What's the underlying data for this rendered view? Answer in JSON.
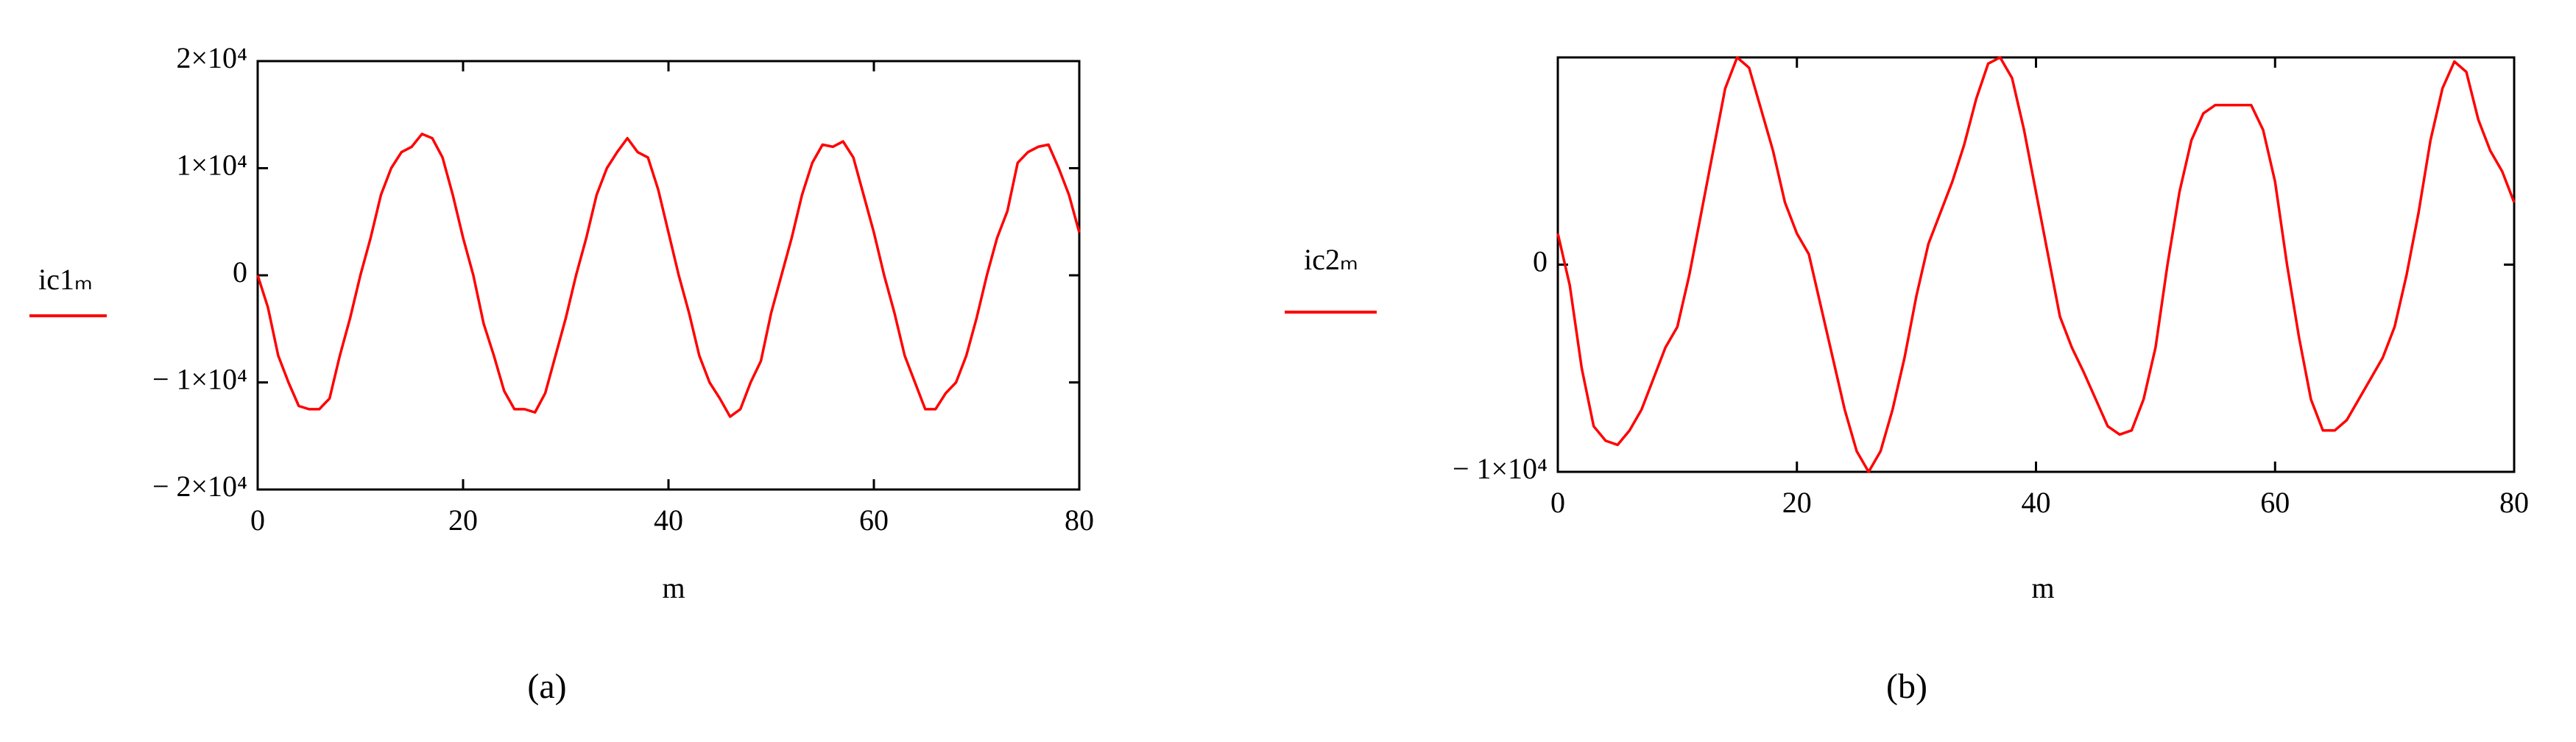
{
  "chart_data": [
    {
      "type": "line",
      "ylabel": "ic1ₘ",
      "xlabel": "m",
      "caption": "(a)",
      "color": "#ff0000",
      "x": [
        0,
        1,
        2,
        3,
        4,
        5,
        6,
        7,
        8,
        9,
        10,
        11,
        12,
        13,
        14,
        15,
        16,
        17,
        18,
        19,
        20,
        21,
        22,
        23,
        24,
        25,
        26,
        27,
        28,
        29,
        30,
        31,
        32,
        33,
        34,
        35,
        36,
        37,
        38,
        39,
        40,
        41,
        42,
        43,
        44,
        45,
        46,
        47,
        48,
        49,
        50,
        51,
        52,
        53,
        54,
        55,
        56,
        57,
        58,
        59,
        60,
        61,
        62,
        63,
        64,
        65,
        66,
        67,
        68,
        69,
        70,
        71,
        72,
        73,
        74,
        75,
        76,
        77,
        78,
        79,
        80
      ],
      "values": [
        0,
        -3000,
        -7500,
        -10000,
        -12200,
        -12500,
        -12500,
        -11500,
        -7500,
        -4000,
        0,
        3500,
        7500,
        10000,
        11500,
        12000,
        13200,
        12800,
        11000,
        7500,
        3500,
        0,
        -4500,
        -7500,
        -10800,
        -12500,
        -12500,
        -12800,
        -11000,
        -7500,
        -4000,
        0,
        3500,
        7500,
        10000,
        11500,
        12800,
        11500,
        11000,
        8000,
        4000,
        0,
        -3500,
        -7500,
        -10000,
        -11500,
        -13200,
        -12500,
        -10000,
        -8000,
        -3500,
        0,
        3500,
        7500,
        10500,
        12200,
        12000,
        12500,
        11000,
        7500,
        4000,
        0,
        -3500,
        -7500,
        -10000,
        -12500,
        -12500,
        -11000,
        -10000,
        -7500,
        -4000,
        0,
        3500,
        6000,
        10500,
        11500,
        12000,
        12200,
        10000,
        7500,
        4000
      ],
      "xlim": [
        0,
        80
      ],
      "xticks": [
        0,
        20,
        40,
        60,
        80
      ],
      "ylim": [
        -20000,
        20000
      ],
      "yticks": [
        {
          "value": 20000,
          "label": "2×10⁴"
        },
        {
          "value": 10000,
          "label": "1×10⁴"
        },
        0,
        {
          "value": -10000,
          "label": "− 1×10⁴"
        },
        {
          "value": -20000,
          "label": "− 2×10⁴"
        }
      ],
      "grid": false
    },
    {
      "type": "line",
      "ylabel": "ic2ₘ",
      "xlabel": "m",
      "caption": "(b)",
      "color": "#ff0000",
      "x": [
        0,
        1,
        2,
        3,
        4,
        5,
        6,
        7,
        8,
        9,
        10,
        11,
        12,
        13,
        14,
        15,
        16,
        17,
        18,
        19,
        20,
        21,
        22,
        23,
        24,
        25,
        26,
        27,
        28,
        29,
        30,
        31,
        32,
        33,
        34,
        35,
        36,
        37,
        38,
        39,
        40,
        41,
        42,
        43,
        44,
        45,
        46,
        47,
        48,
        49,
        50,
        51,
        52,
        53,
        54,
        55,
        56,
        57,
        58,
        59,
        60,
        61,
        62,
        63,
        64,
        65,
        66,
        67,
        68,
        69,
        70,
        71,
        72,
        73,
        74,
        75,
        76,
        77,
        78,
        79,
        80
      ],
      "values": [
        1500,
        -1000,
        -5000,
        -7800,
        -8500,
        -8700,
        -8000,
        -7000,
        -5500,
        -4000,
        -3000,
        -500,
        2500,
        5500,
        8500,
        10000,
        9500,
        7500,
        5500,
        3000,
        1500,
        500,
        -2000,
        -4500,
        -7000,
        -9000,
        -10000,
        -9000,
        -7000,
        -4500,
        -1500,
        1000,
        2500,
        4000,
        5800,
        8000,
        9700,
        10000,
        9000,
        6500,
        3500,
        500,
        -2500,
        -4000,
        -5200,
        -6500,
        -7800,
        -8200,
        -8000,
        -6500,
        -4000,
        0,
        3500,
        6000,
        7300,
        7700,
        7700,
        7700,
        7700,
        6500,
        4000,
        0,
        -3500,
        -6500,
        -8000,
        -8000,
        -7500,
        -6500,
        -5500,
        -4500,
        -3000,
        -500,
        2500,
        6000,
        8500,
        9800,
        9300,
        7000,
        5500,
        4500,
        3000
      ],
      "xlim": [
        0,
        80
      ],
      "xticks": [
        0,
        20,
        40,
        60,
        80
      ],
      "ylim": [
        -10000,
        10000
      ],
      "yticks": [
        0,
        {
          "value": -10000,
          "label": "− 1×10⁴"
        }
      ],
      "grid": false
    }
  ]
}
